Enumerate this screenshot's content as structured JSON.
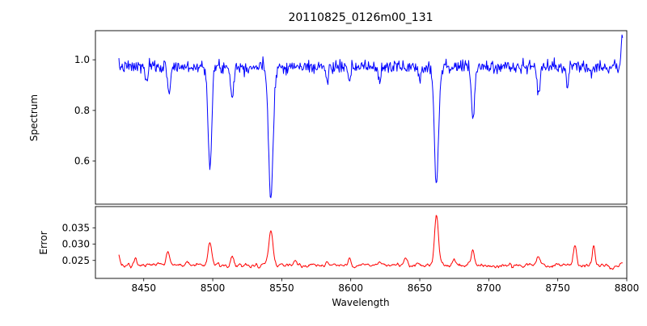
{
  "figure": {
    "title": "20110825_0126m00_131",
    "xlabel": "Wavelength",
    "background": "#ffffff",
    "x_axis": {
      "range": [
        8415,
        8800
      ],
      "tick_values": [
        8450,
        8500,
        8550,
        8600,
        8650,
        8700,
        8750,
        8800
      ],
      "tick_labels": [
        "8450",
        "8500",
        "8550",
        "8600",
        "8650",
        "8700",
        "8750",
        "8800"
      ]
    }
  },
  "chart_data": [
    {
      "id": "spectrum",
      "type": "line",
      "color": "#0000ff",
      "title": "20110825_0126m00_131",
      "ylabel": "Spectrum",
      "legend": "none",
      "grid": false,
      "x_range": [
        8415,
        8800
      ],
      "y_range": [
        0.43,
        1.115
      ],
      "y_tick_values": [
        0.6,
        0.8,
        1.0
      ],
      "y_tick_labels": [
        "0.6",
        "0.8",
        "1.0"
      ],
      "data_x_range": [
        8432,
        8797
      ],
      "n_points": 760,
      "seed": 7,
      "continuum": 0.972,
      "noise_sigma": 0.0125,
      "absorption_lines": [
        {
          "center": 8498.0,
          "depth": 0.4,
          "width": 1.3
        },
        {
          "center": 8542.1,
          "depth": 0.52,
          "width": 1.6
        },
        {
          "center": 8662.1,
          "depth": 0.46,
          "width": 1.5
        },
        {
          "center": 8688.6,
          "depth": 0.2,
          "width": 1.2
        },
        {
          "center": 8514.1,
          "depth": 0.12,
          "width": 1.0
        },
        {
          "center": 8468.4,
          "depth": 0.1,
          "width": 1.0
        },
        {
          "center": 8452.0,
          "depth": 0.06,
          "width": 0.9
        },
        {
          "center": 8583.0,
          "depth": 0.06,
          "width": 0.9
        },
        {
          "center": 8599.0,
          "depth": 0.07,
          "width": 1.0
        },
        {
          "center": 8621.0,
          "depth": 0.06,
          "width": 0.9
        },
        {
          "center": 8650.0,
          "depth": 0.05,
          "width": 0.9
        },
        {
          "center": 8736.0,
          "depth": 0.1,
          "width": 1.1
        },
        {
          "center": 8757.0,
          "depth": 0.07,
          "width": 1.0
        }
      ],
      "emission_spikes": [
        {
          "center": 8796.8,
          "amp": 0.13,
          "width": 0.8
        }
      ]
    },
    {
      "id": "error",
      "type": "line",
      "color": "#ff0000",
      "ylabel": "Error",
      "legend": "none",
      "grid": false,
      "x_range": [
        8415,
        8800
      ],
      "y_range": [
        0.0195,
        0.0415
      ],
      "y_tick_values": [
        0.025,
        0.03,
        0.035
      ],
      "y_tick_labels": [
        "0.025",
        "0.030",
        "0.035"
      ],
      "data_x_range": [
        8432,
        8797
      ],
      "n_points": 760,
      "seed": 13,
      "baseline": 0.0235,
      "noise_sigma": 0.00055,
      "smooth_window": 3,
      "peaks": [
        {
          "center": 8430.5,
          "height": 0.0062,
          "width": 1.2
        },
        {
          "center": 8444.0,
          "height": 0.0018,
          "width": 1.0
        },
        {
          "center": 8467.5,
          "height": 0.0045,
          "width": 1.2
        },
        {
          "center": 8482.0,
          "height": 0.0015,
          "width": 1.0
        },
        {
          "center": 8498.0,
          "height": 0.0068,
          "width": 1.3
        },
        {
          "center": 8514.0,
          "height": 0.0028,
          "width": 1.0
        },
        {
          "center": 8542.1,
          "height": 0.0105,
          "width": 1.5
        },
        {
          "center": 8560.0,
          "height": 0.0012,
          "width": 1.0
        },
        {
          "center": 8583.0,
          "height": 0.0015,
          "width": 1.0
        },
        {
          "center": 8599.0,
          "height": 0.0018,
          "width": 1.0
        },
        {
          "center": 8621.0,
          "height": 0.0015,
          "width": 1.0
        },
        {
          "center": 8640.0,
          "height": 0.0018,
          "width": 1.2
        },
        {
          "center": 8662.1,
          "height": 0.015,
          "width": 1.4
        },
        {
          "center": 8675.0,
          "height": 0.002,
          "width": 1.0
        },
        {
          "center": 8688.6,
          "height": 0.0048,
          "width": 1.1
        },
        {
          "center": 8736.0,
          "height": 0.0022,
          "width": 1.1
        },
        {
          "center": 8762.5,
          "height": 0.0058,
          "width": 1.2
        },
        {
          "center": 8776.0,
          "height": 0.0062,
          "width": 1.0
        },
        {
          "center": 8789.0,
          "height": -0.0013,
          "width": 2.0
        }
      ]
    }
  ]
}
